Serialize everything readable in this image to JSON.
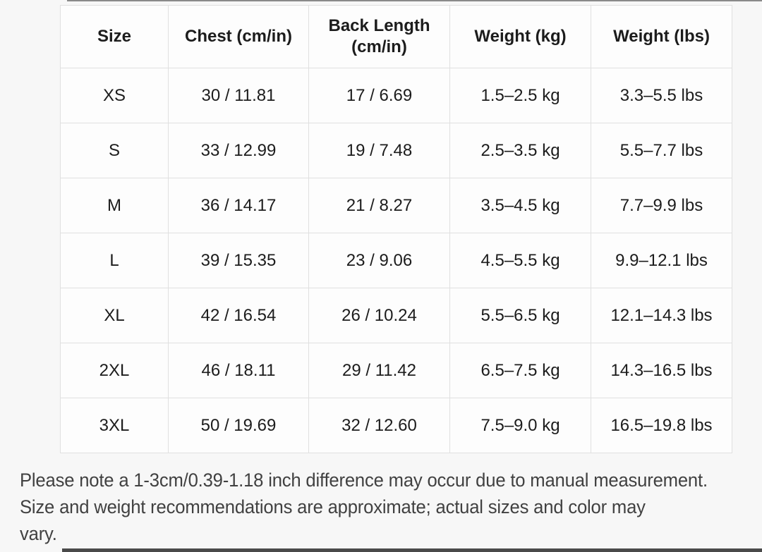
{
  "page": {
    "background_color": "#f7f7f7"
  },
  "colors": {
    "table_border": "#e0e0e0",
    "cell_background": "#fdfdfd",
    "table_text": "#1c1c1c",
    "footnote_text": "#414141"
  },
  "size_chart": {
    "headers": [
      "Size",
      "Chest (cm/in)",
      "Back Length (cm/in)",
      "Weight (kg)",
      "Weight (lbs)"
    ],
    "rows": [
      {
        "size": "XS",
        "chest": "30 / 11.81",
        "back_length": "17 / 6.69",
        "weight_kg": "1.5–2.5 kg",
        "weight_lbs": "3.3–5.5 lbs"
      },
      {
        "size": "S",
        "chest": "33 / 12.99",
        "back_length": "19 / 7.48",
        "weight_kg": "2.5–3.5 kg",
        "weight_lbs": "5.5–7.7 lbs"
      },
      {
        "size": "M",
        "chest": "36 / 14.17",
        "back_length": "21 / 8.27",
        "weight_kg": "3.5–4.5 kg",
        "weight_lbs": "7.7–9.9 lbs"
      },
      {
        "size": "L",
        "chest": "39 / 15.35",
        "back_length": "23 / 9.06",
        "weight_kg": "4.5–5.5 kg",
        "weight_lbs": "9.9–12.1 lbs"
      },
      {
        "size": "XL",
        "chest": "42 / 16.54",
        "back_length": "26 / 10.24",
        "weight_kg": "5.5–6.5 kg",
        "weight_lbs": "12.1–14.3 lbs"
      },
      {
        "size": "2XL",
        "chest": "46 / 18.11",
        "back_length": "29 / 11.42",
        "weight_kg": "6.5–7.5 kg",
        "weight_lbs": "14.3–16.5 lbs"
      },
      {
        "size": "3XL",
        "chest": "50 / 19.69",
        "back_length": "32 / 12.60",
        "weight_kg": "7.5–9.0 kg",
        "weight_lbs": "16.5–19.8 lbs"
      }
    ]
  },
  "footnote": {
    "lines": [
      "Please note a 1-3cm/0.39-1.18 inch difference may occur due to manual measurement.",
      "Size and weight recommendations are approximate; actual sizes and color may",
      "vary."
    ]
  }
}
